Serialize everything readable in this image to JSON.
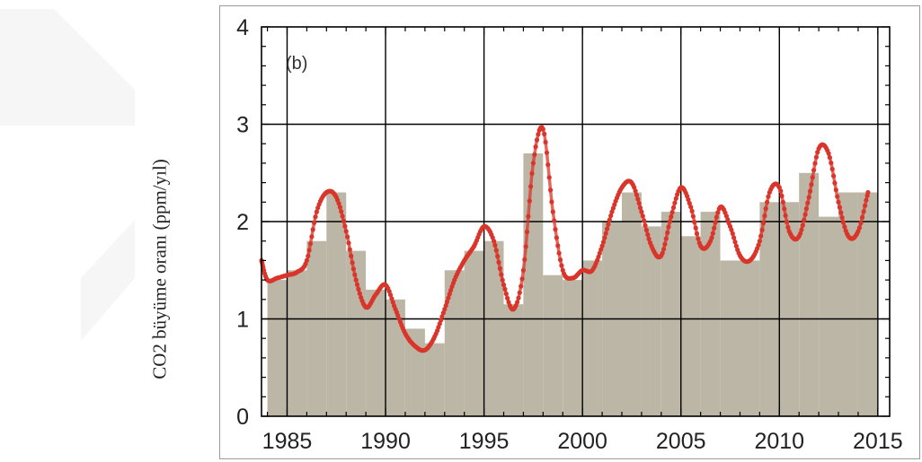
{
  "chart_data": {
    "type": "bar",
    "panel_label": "(b)",
    "xlabel": "",
    "ylabel": "CO2 büyüme oranı (ppm/yıl)",
    "xlim": [
      1983.7,
      2015.6
    ],
    "ylim": [
      0,
      4
    ],
    "grid": true,
    "x_ticks": [
      1985,
      1990,
      1995,
      2000,
      2005,
      2010,
      2015
    ],
    "x_tick_labels": [
      "1985",
      "1990",
      "1995",
      "2000",
      "2005",
      "2010",
      "2015"
    ],
    "y_ticks": [
      0,
      1,
      2,
      3,
      4
    ],
    "y_tick_labels": [
      "0",
      "1",
      "2",
      "3",
      "4"
    ],
    "colors": {
      "bars": "#bcb6a6",
      "line": "#d9352a",
      "grid": "#000000"
    },
    "series": [
      {
        "type": "bar",
        "x": [
          1984,
          1985,
          1986,
          1987,
          1988,
          1989,
          1990,
          1991,
          1992,
          1993,
          1994,
          1995,
          1996,
          1997,
          1998,
          1999,
          2000,
          2001,
          2002,
          2003,
          2004,
          2005,
          2006,
          2007,
          2008,
          2009,
          2010,
          2011,
          2012,
          2013,
          2014
        ],
        "values": [
          1.4,
          1.5,
          1.8,
          2.3,
          1.7,
          1.3,
          1.2,
          0.9,
          0.75,
          1.5,
          1.7,
          1.8,
          1.15,
          2.7,
          1.45,
          1.4,
          1.6,
          2.0,
          2.3,
          1.95,
          2.1,
          1.85,
          2.1,
          1.6,
          1.6,
          2.2,
          2.2,
          2.5,
          2.05,
          2.3,
          2.3
        ]
      },
      {
        "type": "line",
        "x": [
          1983.7,
          1984.0,
          1984.5,
          1985.0,
          1985.5,
          1986.0,
          1986.5,
          1987.0,
          1987.5,
          1988.0,
          1988.5,
          1989.0,
          1989.5,
          1990.0,
          1990.5,
          1991.0,
          1991.5,
          1992.0,
          1992.5,
          1993.0,
          1993.5,
          1994.0,
          1994.5,
          1995.0,
          1995.5,
          1996.0,
          1996.5,
          1997.0,
          1997.5,
          1998.0,
          1998.5,
          1999.0,
          1999.5,
          2000.0,
          2000.5,
          2001.0,
          2001.5,
          2002.0,
          2002.5,
          2003.0,
          2003.5,
          2004.0,
          2004.5,
          2005.0,
          2005.5,
          2006.0,
          2006.5,
          2007.0,
          2007.5,
          2008.0,
          2008.5,
          2009.0,
          2009.5,
          2010.0,
          2010.5,
          2011.0,
          2011.5,
          2012.0,
          2012.5,
          2013.0,
          2013.5,
          2014.0,
          2014.5
        ],
        "y": [
          1.6,
          1.4,
          1.42,
          1.45,
          1.48,
          1.6,
          2.1,
          2.3,
          2.25,
          1.9,
          1.4,
          1.12,
          1.25,
          1.35,
          1.1,
          0.85,
          0.72,
          0.68,
          0.82,
          1.1,
          1.4,
          1.6,
          1.75,
          1.95,
          1.8,
          1.35,
          1.1,
          1.5,
          2.6,
          2.95,
          2.1,
          1.5,
          1.42,
          1.5,
          1.5,
          1.75,
          2.1,
          2.35,
          2.4,
          2.1,
          1.75,
          1.65,
          2.05,
          2.35,
          2.15,
          1.75,
          1.8,
          2.15,
          1.95,
          1.65,
          1.6,
          1.8,
          2.3,
          2.35,
          1.9,
          1.85,
          2.25,
          2.75,
          2.7,
          2.2,
          1.85,
          1.9,
          2.3
        ]
      }
    ]
  }
}
